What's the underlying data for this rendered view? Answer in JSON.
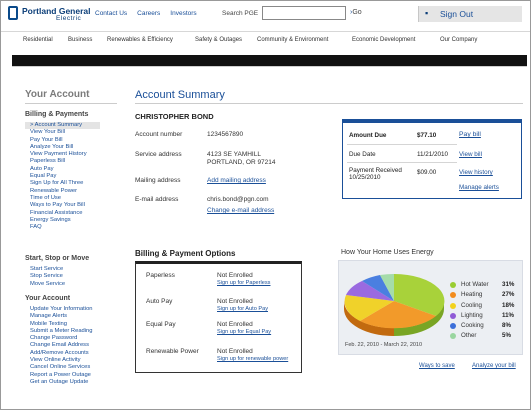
{
  "header": {
    "logo_line1": "Portland General",
    "logo_line2": "Electric",
    "links": [
      "Contact Us",
      "Careers",
      "Investors"
    ],
    "search_label": "Search PGE",
    "search_value": "",
    "go_label": "Go",
    "signout_label": "Sign Out"
  },
  "nav": {
    "items": [
      "Residential",
      "Business",
      "Renewables & Efficiency",
      "Safety & Outages",
      "Community & Environment",
      "Economic Development",
      "Our Company"
    ]
  },
  "sidebar": {
    "title": "Your Account",
    "sections": [
      {
        "title": "Billing & Payments",
        "items": [
          "> Account Summary",
          "View Your Bill",
          "Pay Your Bill",
          "Analyze Your Bill",
          "View Payment History",
          "Paperless Bill",
          "Auto Pay",
          "Equal Pay",
          "Sign Up for All Three",
          "Renewable Power",
          "Time of Use",
          "Ways to Pay Your Bill",
          "Financial Assistance",
          "Energy Savings",
          "FAQ"
        ]
      },
      {
        "title": "Start, Stop or Move",
        "items": [
          "Start Service",
          "Stop Service",
          "Move Service"
        ]
      },
      {
        "title": "Your Account",
        "items": [
          "Update Your Information",
          "Manage Alerts",
          "Mobile Texting",
          "Submit a Meter Reading",
          "Change Password",
          "Change Email Address",
          "Add/Remove Accounts",
          "View Online Activity",
          "Cancel Online Services",
          "Report a Power Outage",
          "Get an Outage Update"
        ]
      }
    ]
  },
  "main": {
    "title": "Account Summary",
    "customer_name": "CHRISTOPHER BOND",
    "account_number_label": "Account number",
    "account_number": "1234567890",
    "service_address_label": "Service address",
    "service_address_line1": "4123 SE YAMHILL",
    "service_address_line2": "PORTLAND, OR 97214",
    "mailing_address_label": "Mailing address",
    "mailing_address_link": "Add mailing address",
    "email_label": "E-mail address",
    "email_value": "chris.bond@pgn.com",
    "email_change_link": "Change e-mail address"
  },
  "due": {
    "amount_due_label": "Amount Due",
    "amount_due": "$77.10",
    "pay_bill": "Pay bill",
    "due_date_label": "Due Date",
    "due_date": "11/21/2010",
    "view_bill": "View bill",
    "payment_label_1": "Payment Received",
    "payment_label_2": "10/25/2010",
    "payment_amount": "$09.00",
    "view_history": "View history",
    "manage_alerts": "Manage alerts"
  },
  "billing_options": {
    "title": "Billing & Payment Options",
    "rows": [
      {
        "name": "Paperless",
        "status": "Not Enrolled",
        "link": "Sign up for Paperless"
      },
      {
        "name": "Auto Pay",
        "status": "Not Enrolled",
        "link": "Sign up for Auto Pay"
      },
      {
        "name": "Equal Pay",
        "status": "Not Enrolled",
        "link": "Sign up for Equal Pay"
      },
      {
        "name": "Renewable Power",
        "status": "Not Enrolled",
        "link": "Sign up for renewable power"
      }
    ]
  },
  "energy": {
    "title": "How Your Home Uses Energy",
    "date_range": "Feb. 22, 2010 - March 22, 2010",
    "ways_to_save": "Ways to save",
    "analyze_bill": "Analyze your bill",
    "legend": [
      {
        "name": "Hot Water",
        "pct": "31%",
        "color": "#9acd32"
      },
      {
        "name": "Heating",
        "pct": "27%",
        "color": "#f28c1e"
      },
      {
        "name": "Cooling",
        "pct": "18%",
        "color": "#f2d21e"
      },
      {
        "name": "Lighting",
        "pct": "11%",
        "color": "#8f5bd6"
      },
      {
        "name": "Cooking",
        "pct": "8%",
        "color": "#3c6fd9"
      },
      {
        "name": "Other",
        "pct": "5%",
        "color": "#9ad6a0"
      }
    ]
  }
}
